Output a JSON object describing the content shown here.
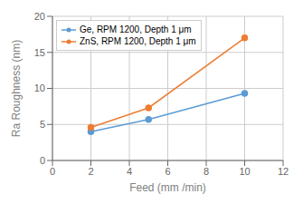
{
  "chart_data": {
    "type": "line",
    "x": [
      2,
      5,
      10
    ],
    "series": [
      {
        "name": "Ge, RPM 1200, Depth 1 μm",
        "color": "#5b9bd5",
        "values": [
          4.0,
          5.7,
          9.3
        ]
      },
      {
        "name": "ZnS, RPM 1200, Depth 1 μm",
        "color": "#ed7d31",
        "values": [
          4.6,
          7.3,
          17.0
        ]
      }
    ],
    "xlabel": "Feed (mm /min)",
    "ylabel": "Ra Roughness (nm)",
    "xlim": [
      0,
      12
    ],
    "ylim": [
      0,
      20
    ],
    "xticks": [
      0,
      2,
      4,
      6,
      8,
      10,
      12
    ],
    "yticks": [
      0,
      5,
      10,
      15,
      20
    ],
    "grid": true,
    "legend": "upper left",
    "marker": "o"
  }
}
